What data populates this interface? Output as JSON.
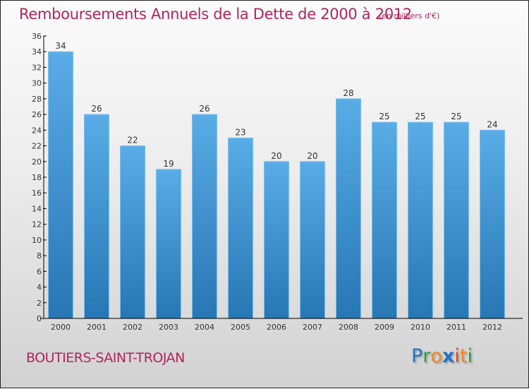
{
  "chart_data": {
    "type": "bar",
    "title": "Remboursements Annuels de la Dette de 2000 à 2012",
    "subtitle": "(en milliers d'€)",
    "xlabel": "",
    "ylabel": "",
    "categories": [
      "2000",
      "2001",
      "2002",
      "2003",
      "2004",
      "2005",
      "2006",
      "2007",
      "2008",
      "2009",
      "2010",
      "2011",
      "2012"
    ],
    "values": [
      34,
      26,
      22,
      19,
      26,
      23,
      20,
      20,
      28,
      25,
      25,
      25,
      24
    ],
    "data_labels": [
      "34",
      "26",
      "22",
      "19",
      "26",
      "23",
      "20",
      "20",
      "28",
      "25",
      "25",
      "25",
      "24"
    ],
    "ylim": [
      0,
      36
    ],
    "yticks": [
      0,
      2,
      4,
      6,
      8,
      10,
      12,
      14,
      16,
      18,
      20,
      22,
      24,
      26,
      28,
      30,
      32,
      34,
      36
    ],
    "grid": false,
    "legend": "none",
    "colors": {
      "bar_top": "#5aace6",
      "bar_bottom": "#2677b4",
      "bar_edge": "#7cc0f0",
      "axis": "#000000",
      "label": "#333333",
      "title": "#b0245a"
    }
  },
  "footer": {
    "commune": "BOUTIERS-SAINT-TROJAN",
    "logo": {
      "letters": [
        {
          "char": "P",
          "color": "#1f74c7"
        },
        {
          "char": "r",
          "color": "#2aa042"
        },
        {
          "char": "o",
          "color": "#f08a1c"
        },
        {
          "char": "x",
          "color": "#1f74c7"
        },
        {
          "char": "i",
          "color": "#e8401c"
        },
        {
          "char": "t",
          "color": "#f08a1c"
        },
        {
          "char": "i",
          "color": "#2aa042"
        }
      ]
    }
  }
}
